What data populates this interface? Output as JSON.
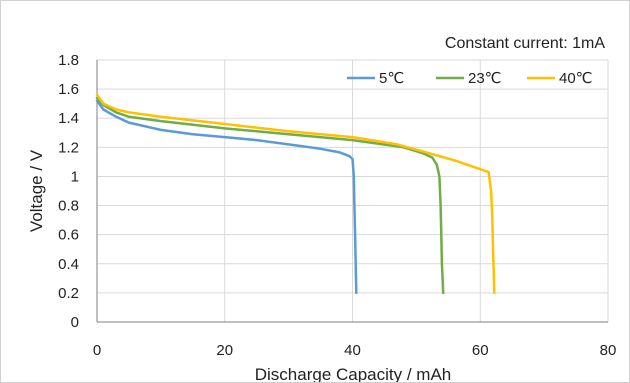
{
  "chart_data": {
    "type": "line",
    "title": "",
    "annotation": "Constant current: 1mA",
    "xlabel": "Discharge Capacity / mAh",
    "ylabel": "Voltage / V",
    "xlim": [
      0,
      80
    ],
    "ylim": [
      0,
      1.8
    ],
    "x_ticks": [
      "0",
      "20",
      "40",
      "60",
      "80"
    ],
    "y_ticks": [
      "0",
      "0.2",
      "0.4",
      "0.6",
      "0.8",
      "1",
      "1.2",
      "1.4",
      "1.6",
      "1.8"
    ],
    "grid": "vertical-and-horizontal",
    "legend_position": "top-right",
    "series": [
      {
        "name": "5℃",
        "color": "#5b9bd5",
        "x": [
          0,
          1,
          3,
          5,
          10,
          15,
          20,
          25,
          30,
          35,
          38,
          39.5,
          40.0,
          40.2,
          40.3,
          40.4,
          40.5,
          40.6
        ],
        "y": [
          1.52,
          1.46,
          1.41,
          1.37,
          1.32,
          1.29,
          1.27,
          1.25,
          1.22,
          1.19,
          1.165,
          1.14,
          1.12,
          1.0,
          0.8,
          0.6,
          0.4,
          0.2
        ]
      },
      {
        "name": "23℃",
        "color": "#70ad47",
        "x": [
          0,
          1,
          3,
          5,
          10,
          20,
          30,
          40,
          48,
          51,
          52.5,
          53.2,
          53.6,
          53.8,
          53.9,
          54.0,
          54.1,
          54.2
        ],
        "y": [
          1.54,
          1.49,
          1.44,
          1.41,
          1.38,
          1.33,
          1.29,
          1.25,
          1.2,
          1.16,
          1.13,
          1.08,
          1.0,
          0.8,
          0.6,
          0.4,
          0.3,
          0.2
        ]
      },
      {
        "name": "40℃",
        "color": "#ffc000",
        "x": [
          0,
          1,
          3,
          5,
          10,
          20,
          30,
          40,
          47,
          52,
          56,
          60,
          61.3,
          61.7,
          61.9,
          62.0,
          62.1,
          62.2
        ],
        "y": [
          1.56,
          1.5,
          1.46,
          1.44,
          1.41,
          1.36,
          1.31,
          1.27,
          1.22,
          1.16,
          1.11,
          1.05,
          1.03,
          0.9,
          0.7,
          0.5,
          0.35,
          0.2
        ]
      }
    ]
  }
}
